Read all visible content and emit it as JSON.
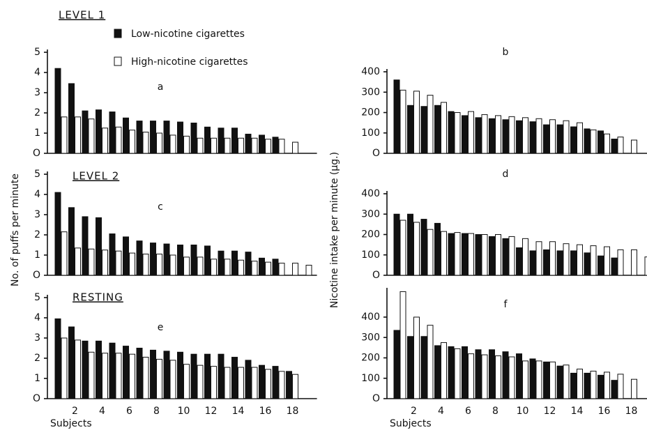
{
  "row_labels": [
    "LEVEL 1",
    "LEVEL 2",
    "RESTING"
  ],
  "legend": [
    {
      "name": "Low-nicotine cigarettes",
      "color": "#111111"
    },
    {
      "name": "High-nicotine cigarettes",
      "color": "#ffffff"
    }
  ],
  "ylabel_left": "No. of puffs per minute",
  "ylabel_right": "Nicotine intake per minute (µg.)",
  "chart_data": [
    {
      "type": "bar",
      "title": "a",
      "ylim": [
        0,
        5
      ],
      "yticks": [
        {
          "value": 0,
          "label": "O"
        },
        1,
        2,
        3,
        4,
        5
      ],
      "series": [
        {
          "color": "#111111",
          "values": [
            4.2,
            3.45,
            2.1,
            2.15,
            2.05,
            1.75,
            1.6,
            1.6,
            1.6,
            1.55,
            1.5,
            1.3,
            1.25,
            1.25,
            0.95,
            0.9,
            0.8,
            null,
            null
          ]
        },
        {
          "color": "#ffffff",
          "values": [
            1.8,
            1.8,
            1.7,
            1.25,
            1.3,
            1.15,
            1.05,
            1.0,
            0.9,
            0.85,
            0.75,
            0.75,
            0.75,
            0.75,
            0.75,
            0.7,
            0.7,
            0.55,
            null
          ]
        }
      ]
    },
    {
      "type": "bar",
      "title": "b",
      "ylim": [
        0,
        400
      ],
      "yticks": [
        {
          "value": 0,
          "label": "O"
        },
        100,
        200,
        300,
        400
      ],
      "series": [
        {
          "color": "#111111",
          "values": [
            360,
            235,
            230,
            235,
            205,
            185,
            175,
            170,
            165,
            160,
            155,
            140,
            140,
            130,
            120,
            110,
            70,
            null,
            null
          ]
        },
        {
          "color": "#ffffff",
          "values": [
            310,
            305,
            285,
            250,
            200,
            205,
            190,
            185,
            180,
            175,
            170,
            165,
            160,
            150,
            115,
            95,
            80,
            65,
            null
          ]
        }
      ]
    },
    {
      "type": "bar",
      "title": "c",
      "ylim": [
        0,
        5
      ],
      "yticks": [
        {
          "value": 0,
          "label": "O"
        },
        1,
        2,
        3,
        4,
        5
      ],
      "series": [
        {
          "color": "#111111",
          "values": [
            4.1,
            3.35,
            2.9,
            2.85,
            2.05,
            1.9,
            1.7,
            1.6,
            1.55,
            1.5,
            1.5,
            1.45,
            1.2,
            1.2,
            1.15,
            0.85,
            0.8,
            null,
            null
          ]
        },
        {
          "color": "#ffffff",
          "values": [
            2.15,
            1.35,
            1.3,
            1.25,
            1.2,
            1.1,
            1.05,
            1.05,
            1.0,
            0.9,
            0.9,
            0.8,
            0.8,
            0.75,
            0.7,
            0.65,
            0.6,
            0.6,
            0.5
          ]
        }
      ]
    },
    {
      "type": "bar",
      "title": "d",
      "ylim": [
        0,
        400
      ],
      "yticks": [
        {
          "value": 0,
          "label": "O"
        },
        100,
        200,
        300,
        400
      ],
      "series": [
        {
          "color": "#111111",
          "values": [
            300,
            300,
            275,
            255,
            205,
            205,
            200,
            190,
            180,
            135,
            120,
            125,
            120,
            120,
            110,
            95,
            85,
            null,
            null
          ]
        },
        {
          "color": "#ffffff",
          "values": [
            270,
            260,
            225,
            215,
            210,
            205,
            200,
            200,
            190,
            180,
            165,
            165,
            155,
            150,
            145,
            140,
            125,
            125,
            90
          ]
        }
      ]
    },
    {
      "type": "bar",
      "title": "e",
      "xlabel": "Subjects",
      "ylim": [
        0,
        5
      ],
      "yticks": [
        {
          "value": 0,
          "label": "O"
        },
        1,
        2,
        3,
        4,
        5
      ],
      "categories": [
        null,
        "2",
        null,
        "4",
        null,
        "6",
        null,
        "8",
        null,
        "10",
        null,
        "12",
        null,
        "14",
        null,
        "16",
        null,
        "18",
        null
      ],
      "series": [
        {
          "color": "#111111",
          "values": [
            3.95,
            3.55,
            2.85,
            2.85,
            2.75,
            2.6,
            2.5,
            2.4,
            2.35,
            2.3,
            2.2,
            2.2,
            2.2,
            2.05,
            1.9,
            1.65,
            1.6,
            1.35,
            null
          ]
        },
        {
          "color": "#ffffff",
          "values": [
            3.0,
            2.9,
            2.3,
            2.25,
            2.25,
            2.2,
            2.05,
            1.95,
            1.9,
            1.7,
            1.65,
            1.6,
            1.55,
            1.55,
            1.55,
            1.45,
            1.35,
            1.2,
            null
          ]
        }
      ]
    },
    {
      "type": "bar",
      "title": "f",
      "xlabel": "Subjects",
      "ylim": [
        0,
        530
      ],
      "yticks": [
        {
          "value": 0,
          "label": "O"
        },
        100,
        200,
        300,
        400
      ],
      "categories": [
        null,
        "2",
        null,
        "4",
        null,
        "6",
        null,
        "8",
        null,
        "10",
        null,
        "12",
        null,
        "14",
        null,
        "16",
        null,
        "18",
        null
      ],
      "series": [
        {
          "color": "#111111",
          "values": [
            335,
            305,
            305,
            260,
            255,
            255,
            240,
            240,
            230,
            220,
            195,
            180,
            160,
            125,
            125,
            115,
            90,
            null,
            null
          ]
        },
        {
          "color": "#ffffff",
          "values": [
            525,
            400,
            360,
            275,
            245,
            220,
            215,
            210,
            205,
            185,
            185,
            180,
            165,
            145,
            135,
            130,
            120,
            95,
            null
          ]
        }
      ]
    }
  ]
}
